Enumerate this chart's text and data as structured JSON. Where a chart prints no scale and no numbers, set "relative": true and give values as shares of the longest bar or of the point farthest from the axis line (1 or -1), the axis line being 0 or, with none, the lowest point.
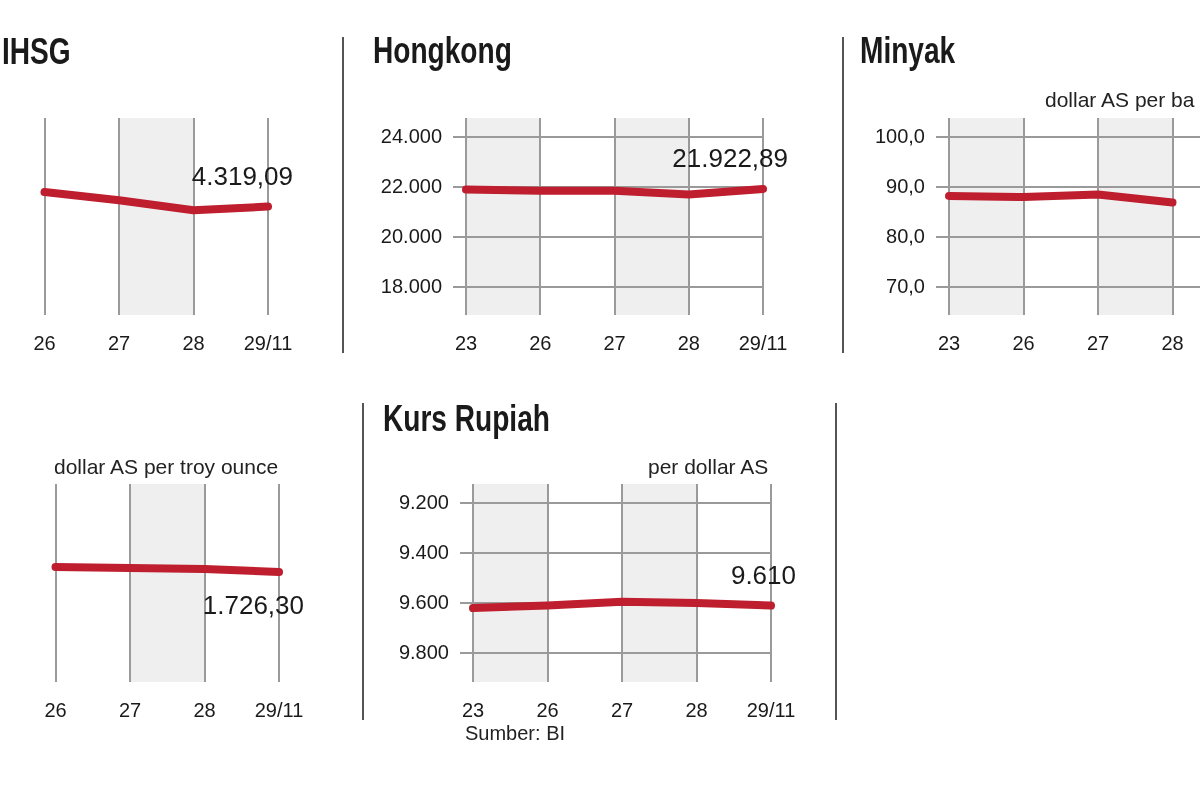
{
  "chart_data": [
    {
      "type": "line",
      "title": "IHSG",
      "categories": [
        null,
        "26",
        "27",
        "28",
        "29/11"
      ],
      "relative": true,
      "tick_labels": "x",
      "grid": "x",
      "marker": "none",
      "line_style": "solid",
      "bands": [
        {
          "axis": "x",
          "from": "27",
          "to": "28",
          "color": "#efefef"
        }
      ],
      "series": [
        {
          "color": "#be1e2d",
          "values": [
            null,
            1,
            0.55,
            0,
            0.2
          ]
        }
      ],
      "annotations": [
        "4.319,09"
      ]
    },
    {
      "type": "line",
      "title": "Hongkong",
      "categories": [
        "23",
        "26",
        "27",
        "28",
        "29/11"
      ],
      "ylim": [
        16880,
        24760
      ],
      "yticks": [
        {
          "value": 18000,
          "label": "18.000"
        },
        {
          "value": 20000,
          "label": "20.000"
        },
        {
          "value": 22000,
          "label": "22.000"
        },
        {
          "value": 24000,
          "label": "24.000"
        }
      ],
      "grid": true,
      "marker": "none",
      "line_style": "solid",
      "bands": [
        {
          "axis": "x",
          "from": "23",
          "to": "26",
          "color": "#efefef"
        },
        {
          "axis": "x",
          "from": "27",
          "to": "28",
          "color": "#efefef"
        }
      ],
      "series": [
        {
          "color": "#be1e2d",
          "values": [
            21900,
            21850,
            21850,
            21700,
            21922.89
          ],
          "value_labels": [
            null,
            null,
            null,
            null,
            "21.922,89"
          ]
        }
      ]
    },
    {
      "type": "line",
      "title": "Minyak",
      "subtitle": "dollar AS per ba",
      "categories": [
        "23",
        "26",
        "27",
        "28",
        null
      ],
      "ylim": [
        64.4,
        103.8
      ],
      "yticks": [
        {
          "value": 70,
          "label": "70,0"
        },
        {
          "value": 80,
          "label": "80,0"
        },
        {
          "value": 90,
          "label": "90,0"
        },
        {
          "value": 100,
          "label": "100,0"
        }
      ],
      "grid": true,
      "marker": "none",
      "line_style": "solid",
      "bands": [
        {
          "axis": "x",
          "from": "23",
          "to": "26",
          "color": "#efefef"
        },
        {
          "axis": "x",
          "from": "27",
          "to": "28",
          "color": "#efefef"
        }
      ],
      "series": [
        {
          "color": "#be1e2d",
          "values": [
            88.2,
            88.0,
            88.5,
            86.9,
            null
          ]
        }
      ]
    },
    {
      "type": "line",
      "subtitle": "dollar AS per troy ounce",
      "categories": [
        null,
        "26",
        "27",
        "28",
        "29/11"
      ],
      "relative": true,
      "tick_labels": "x",
      "grid": "x",
      "marker": "none",
      "line_style": "solid",
      "bands": [
        {
          "axis": "x",
          "from": "27",
          "to": "28",
          "color": "#efefef"
        }
      ],
      "series": [
        {
          "color": "#be1e2d",
          "values": [
            null,
            1,
            0.8,
            0.6,
            0
          ]
        }
      ],
      "annotations": [
        "1.726,30"
      ]
    },
    {
      "type": "line",
      "title": "Kurs Rupiah",
      "subtitle": "per dollar AS",
      "categories": [
        "23",
        "26",
        "27",
        "28",
        "29/11"
      ],
      "ylim": [
        9916,
        9124
      ],
      "yticks": [
        {
          "value": 9200,
          "label": "9.200"
        },
        {
          "value": 9400,
          "label": "9.400"
        },
        {
          "value": 9600,
          "label": "9.600"
        },
        {
          "value": 9800,
          "label": "9.800"
        }
      ],
      "grid": true,
      "marker": "none",
      "line_style": "solid",
      "bands": [
        {
          "axis": "x",
          "from": "23",
          "to": "26",
          "color": "#efefef"
        },
        {
          "axis": "x",
          "from": "27",
          "to": "28",
          "color": "#efefef"
        }
      ],
      "series": [
        {
          "color": "#be1e2d",
          "values": [
            9620,
            9610,
            9595,
            9600,
            9610
          ],
          "value_labels": [
            null,
            null,
            null,
            null,
            "9.610"
          ]
        }
      ],
      "annotations": [
        "Sumber: BI"
      ]
    }
  ]
}
